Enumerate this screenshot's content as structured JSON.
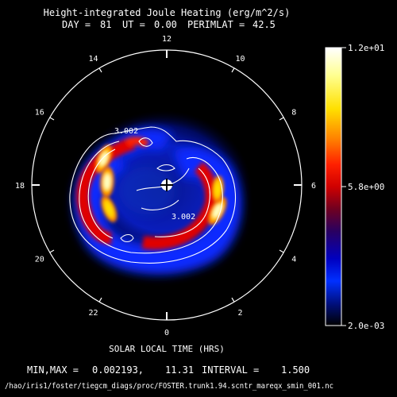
{
  "title_line1": "Height-integrated Joule Heating (erg/m^2/s)",
  "title_line2": {
    "day_label": "DAY =",
    "day": "81",
    "ut_label": "UT =",
    "ut": "0.00",
    "perimlat_label": "PERIMLAT =",
    "perimlat": "42.5"
  },
  "colorbar": {
    "max_label": "1.2e+01",
    "mid_label": "5.8e+00",
    "min_label": "2.0e-03",
    "colors": [
      "#ffffff",
      "#ffff80",
      "#ffe000",
      "#ff8000",
      "#ff2000",
      "#e00000",
      "#8a0000",
      "#2a0050",
      "#0000a0",
      "#0010ff",
      "#0040ff",
      "#000040",
      "#000000"
    ]
  },
  "footer": {
    "xlabel": "SOLAR LOCAL TIME (HRS)",
    "minmax_label": "MIN,MAX =",
    "min_value": "0.002193,",
    "max_value": "11.31",
    "interval_label": "INTERVAL =",
    "interval_value": "1.500",
    "file_path": "/hao/iris1/foster/tiegcm_diags/proc/FOSTER.trunk1.94.scntr_mareqx_smin_001.nc"
  },
  "chart_data": {
    "type": "heatmap",
    "projection": "polar",
    "hour_labels": [
      "12",
      "14",
      "16",
      "18",
      "20",
      "22",
      "0",
      "2",
      "4",
      "6",
      "8",
      "10"
    ],
    "hour_values": [
      12,
      14,
      16,
      18,
      20,
      22,
      0,
      2,
      4,
      6,
      8,
      10
    ],
    "contour_labels": [
      "3.002",
      "3.002"
    ],
    "value_range": [
      0.002,
      12.0
    ],
    "contour_interval": 1.5,
    "heat_regions": [
      {
        "slt": 16.5,
        "colat_deg": 24,
        "peak": 10.5
      },
      {
        "slt": 17.8,
        "colat_deg": 21,
        "peak": 11.3
      },
      {
        "slt": 19.5,
        "colat_deg": 22,
        "peak": 8.5
      },
      {
        "slt": 4.2,
        "colat_deg": 20,
        "peak": 11.0
      },
      {
        "slt": 5.7,
        "colat_deg": 18,
        "peak": 7.5
      }
    ]
  }
}
